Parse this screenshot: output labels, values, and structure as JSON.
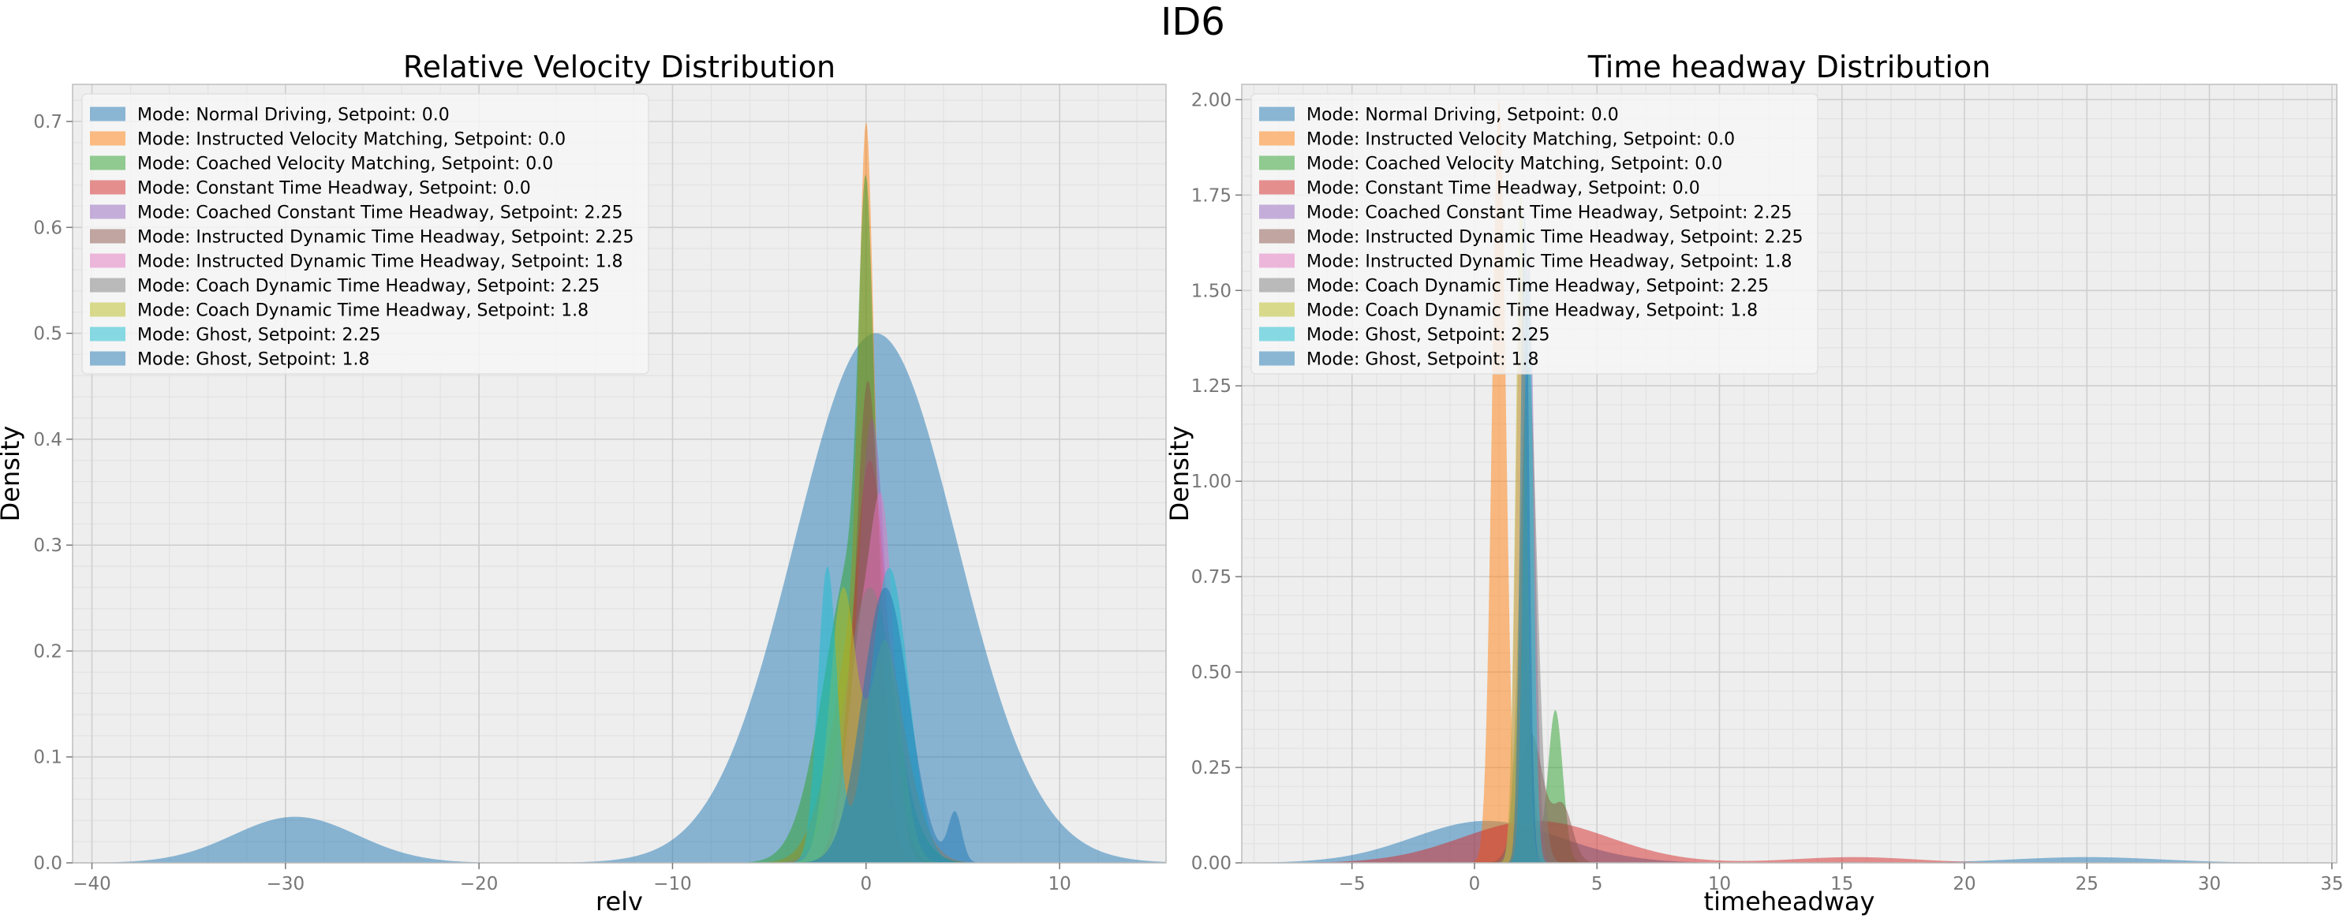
{
  "figure": {
    "title": "ID6"
  },
  "colors": {
    "plot_bg": "#eeeeee",
    "grid_major": "#cfcfcf",
    "grid_minor": "#e2e2e2",
    "legend_bg": "#f6f6f6",
    "tick_text": "#777777"
  },
  "chart_data": [
    {
      "type": "area",
      "title": "Relative Velocity Distribution",
      "xlabel": "relv",
      "ylabel": "Density",
      "xlim": [
        -41,
        15.5
      ],
      "ylim": [
        0,
        0.735
      ],
      "xticks": [
        -40,
        -30,
        -20,
        -10,
        0,
        10
      ],
      "xtick_labels": [
        "−40",
        "−30",
        "−20",
        "−10",
        "0",
        "10"
      ],
      "yticks": [
        0.0,
        0.1,
        0.2,
        0.3,
        0.4,
        0.5,
        0.6,
        0.7
      ],
      "ytick_labels": [
        "0.0",
        "0.1",
        "0.2",
        "0.3",
        "0.4",
        "0.5",
        "0.6",
        "0.7"
      ],
      "grid": true,
      "legend_position": "upper-left",
      "series": [
        {
          "name": "Mode: Normal Driving, Setpoint: 0.0",
          "color": "#1f77b4",
          "components": [
            [
              0.92,
              0.5,
              4.2
            ],
            [
              0.08,
              -29.5,
              3.2
            ]
          ],
          "scale": 0.5
        },
        {
          "name": "Mode: Instructed Velocity Matching, Setpoint: 0.0",
          "color": "#ff7f0e",
          "components": [
            [
              0.6,
              0.0,
              0.35
            ],
            [
              0.4,
              0.1,
              1.5
            ]
          ],
          "scale": 0.7
        },
        {
          "name": "Mode: Coached Velocity Matching, Setpoint: 0.0",
          "color": "#2ca02c",
          "components": [
            [
              0.55,
              0.0,
              0.38
            ],
            [
              0.45,
              -0.5,
              1.6
            ]
          ],
          "scale": 0.65
        },
        {
          "name": "Mode: Constant Time Headway, Setpoint: 0.0",
          "color": "#d62728",
          "components": [
            [
              1.0,
              0.2,
              0.9
            ]
          ],
          "scale": 0.38
        },
        {
          "name": "Mode: Coached Constant Time Headway, Setpoint: 2.25",
          "color": "#9467bd",
          "components": [
            [
              1.0,
              0.3,
              0.75
            ]
          ],
          "scale": 0.42
        },
        {
          "name": "Mode: Instructed Dynamic Time Headway, Setpoint: 2.25",
          "color": "#8c564b",
          "components": [
            [
              1.0,
              0.1,
              0.65
            ]
          ],
          "scale": 0.455
        },
        {
          "name": "Mode: Instructed Dynamic Time Headway, Setpoint: 1.8",
          "color": "#e377c2",
          "components": [
            [
              0.6,
              0.9,
              0.6
            ],
            [
              0.4,
              -0.3,
              0.7
            ]
          ],
          "scale": 0.35
        },
        {
          "name": "Mode: Coach Dynamic Time Headway, Setpoint: 2.25",
          "color": "#7f7f7f",
          "components": [
            [
              1.0,
              0.2,
              1.3
            ]
          ],
          "scale": 0.26
        },
        {
          "name": "Mode: Coach Dynamic Time Headway, Setpoint: 1.8",
          "color": "#bcbd22",
          "components": [
            [
              0.55,
              -1.2,
              0.7
            ],
            [
              0.45,
              1.0,
              0.8
            ]
          ],
          "scale": 0.26
        },
        {
          "name": "Mode: Ghost, Setpoint: 2.25",
          "color": "#17becf",
          "components": [
            [
              0.5,
              -2.0,
              0.5
            ],
            [
              0.5,
              1.2,
              1.0
            ]
          ],
          "scale": 0.28
        },
        {
          "name": "Mode: Ghost, Setpoint: 1.8",
          "color": "#1f77b4",
          "components": [
            [
              0.85,
              1.0,
              1.2
            ],
            [
              0.15,
              4.6,
              0.35
            ]
          ],
          "scale": 0.26
        }
      ]
    },
    {
      "type": "area",
      "title": "Time headway Distribution",
      "xlabel": "timeheadway",
      "ylabel": "Density",
      "xlim": [
        -9.5,
        35.2
      ],
      "ylim": [
        0,
        2.04
      ],
      "xticks": [
        -5,
        0,
        5,
        10,
        15,
        20,
        25,
        30,
        35
      ],
      "xtick_labels": [
        "−5",
        "0",
        "5",
        "10",
        "15",
        "20",
        "25",
        "30",
        "35"
      ],
      "yticks": [
        0.0,
        0.25,
        0.5,
        0.75,
        1.0,
        1.25,
        1.5,
        1.75,
        2.0
      ],
      "ytick_labels": [
        "0.00",
        "0.25",
        "0.50",
        "0.75",
        "1.00",
        "1.25",
        "1.50",
        "1.75",
        "2.00"
      ],
      "grid": true,
      "legend_position": "upper-left",
      "series": [
        {
          "name": "Mode: Normal Driving, Setpoint: 0.0",
          "color": "#1f77b4",
          "components": [
            [
              0.88,
              0.5,
              3.0
            ],
            [
              0.12,
              25.0,
              3.0
            ]
          ],
          "scale": 0.11
        },
        {
          "name": "Mode: Instructed Velocity Matching, Setpoint: 0.0",
          "color": "#ff7f0e",
          "components": [
            [
              1.0,
              1.0,
              0.28
            ]
          ],
          "scale": 2.0
        },
        {
          "name": "Mode: Coached Velocity Matching, Setpoint: 0.0",
          "color": "#2ca02c",
          "components": [
            [
              0.6,
              2.0,
              0.3
            ],
            [
              0.4,
              3.3,
              0.3
            ]
          ],
          "scale": 0.6
        },
        {
          "name": "Mode: Constant Time Headway, Setpoint: 0.0",
          "color": "#d62728",
          "components": [
            [
              0.88,
              2.5,
              3.0
            ],
            [
              0.12,
              15.5,
              2.5
            ]
          ],
          "scale": 0.11
        },
        {
          "name": "Mode: Coached Constant Time Headway, Setpoint: 2.25",
          "color": "#9467bd",
          "components": [
            [
              1.0,
              2.2,
              0.25
            ]
          ],
          "scale": 1.6
        },
        {
          "name": "Mode: Instructed Dynamic Time Headway, Setpoint: 2.25",
          "color": "#8c564b",
          "components": [
            [
              0.7,
              2.3,
              0.5
            ],
            [
              0.3,
              3.6,
              0.4
            ]
          ],
          "scale": 0.34
        },
        {
          "name": "Mode: Instructed Dynamic Time Headway, Setpoint: 1.8",
          "color": "#e377c2",
          "components": [
            [
              1.0,
              1.9,
              0.22
            ]
          ],
          "scale": 1.55
        },
        {
          "name": "Mode: Coach Dynamic Time Headway, Setpoint: 2.25",
          "color": "#7f7f7f",
          "components": [
            [
              1.0,
              2.2,
              0.35
            ]
          ],
          "scale": 1.3
        },
        {
          "name": "Mode: Coach Dynamic Time Headway, Setpoint: 1.8",
          "color": "#bcbd22",
          "components": [
            [
              1.0,
              1.9,
              0.22
            ]
          ],
          "scale": 1.75
        },
        {
          "name": "Mode: Ghost, Setpoint: 2.25",
          "color": "#17becf",
          "components": [
            [
              1.0,
              2.2,
              0.2
            ]
          ],
          "scale": 1.55
        },
        {
          "name": "Mode: Ghost, Setpoint: 1.8",
          "color": "#1f77b4",
          "components": [
            [
              1.0,
              2.05,
              0.18
            ]
          ],
          "scale": 1.7
        }
      ]
    }
  ]
}
